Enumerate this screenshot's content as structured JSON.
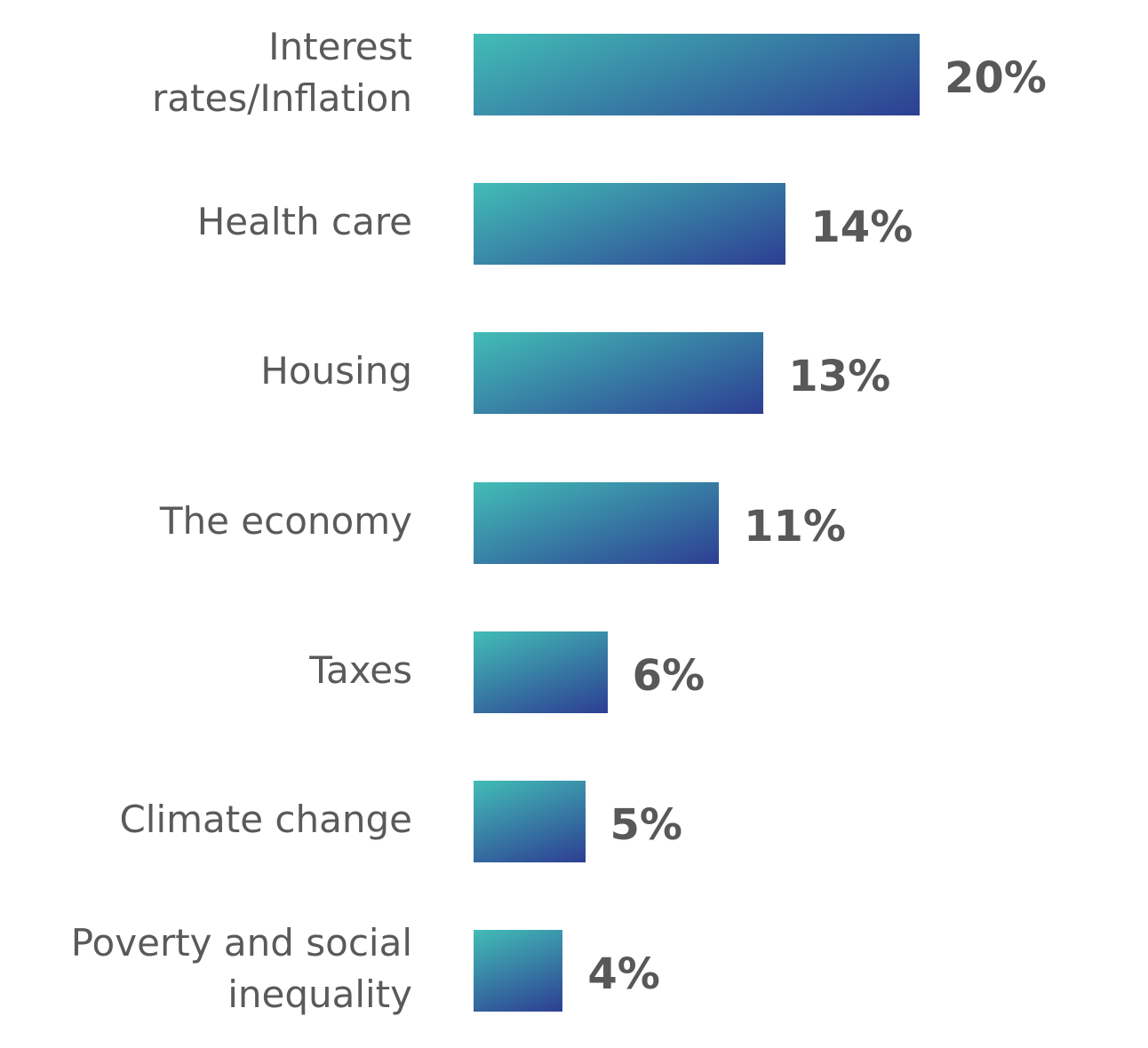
{
  "chart_data": {
    "type": "bar",
    "orientation": "horizontal",
    "categories": [
      "Interest rates/Inflation",
      "Health care",
      "Housing",
      "The economy",
      "Taxes",
      "Climate change",
      "Poverty and social inequality"
    ],
    "values": [
      20,
      14,
      13,
      11,
      6,
      5,
      4
    ],
    "value_labels": [
      "20%",
      "14%",
      "13%",
      "11%",
      "6%",
      "5%",
      "4%"
    ],
    "colors": [
      "#42bdb6",
      "#2d3e93"
    ]
  }
}
